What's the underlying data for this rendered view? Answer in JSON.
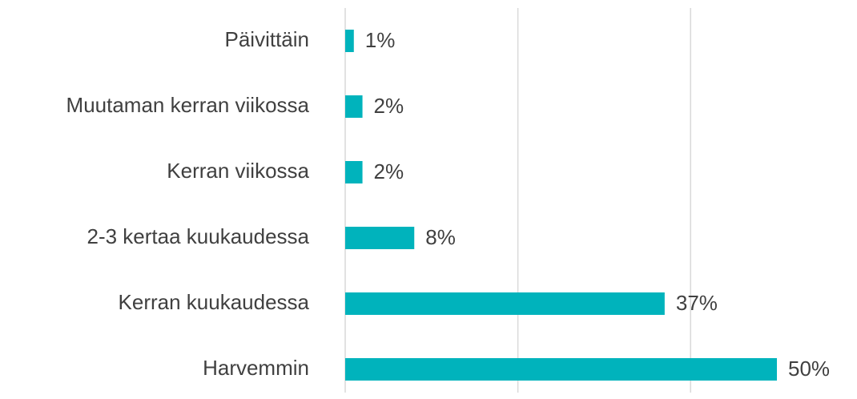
{
  "chart_data": {
    "type": "bar",
    "orientation": "horizontal",
    "categories": [
      "Päivittäin",
      "Muutaman kerran viikossa",
      "Kerran viikossa",
      "2-3 kertaa kuukaudessa",
      "Kerran kuukaudessa",
      "Harvemmin"
    ],
    "values": [
      1,
      2,
      2,
      8,
      37,
      50
    ],
    "value_labels": [
      "1%",
      "2%",
      "2%",
      "8%",
      "37%",
      "50%"
    ],
    "color": "#00b3bc",
    "xlim": [
      0,
      50
    ],
    "xticks": [
      0,
      20,
      40
    ],
    "grid": true
  }
}
